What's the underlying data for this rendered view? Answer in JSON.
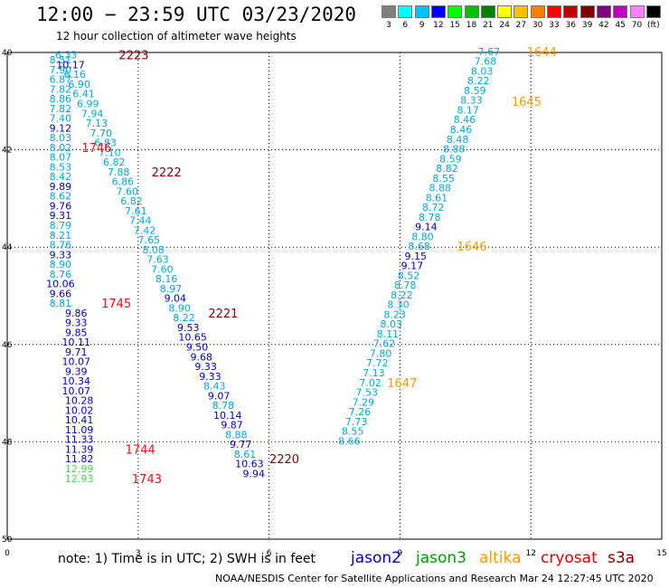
{
  "header": {
    "title": "12:00 − 23:59 UTC 03/23/2020",
    "subtitle": "12 hour collection of altimeter wave heights"
  },
  "colorbar": {
    "colors": [
      "#808080",
      "#00ffff",
      "#00c0ff",
      "#0000ff",
      "#00ff00",
      "#00c000",
      "#008000",
      "#ffff00",
      "#ffc000",
      "#ff8000",
      "#ff0000",
      "#c00000",
      "#800000",
      "#800080",
      "#c000c0",
      "#ff80ff",
      "#000000"
    ],
    "labels": [
      "3",
      "6",
      "9",
      "12",
      "15",
      "18",
      "21",
      "24",
      "27",
      "30",
      "33",
      "36",
      "39",
      "42",
      "45",
      "70",
      "(ft)"
    ]
  },
  "axes": {
    "x_ticks": [
      "0",
      "3",
      "6",
      "9",
      "12",
      "15"
    ],
    "y_ticks": [
      "40",
      "42",
      "44",
      "46",
      "48",
      "50"
    ]
  },
  "footer": {
    "note": "note:  1) Time is in UTC; 2) SWH is in feet",
    "credit": "NOAA/NESDIS Center for Satellite Applications and Research    Mar 24 12:27:45 UTC 2020",
    "satellites": [
      {
        "name": "jason2",
        "color": "#0000cc"
      },
      {
        "name": "jason3",
        "color": "#00a000"
      },
      {
        "name": "altika",
        "color": "#ff9900"
      },
      {
        "name": "cryosat",
        "color": "#dd0000"
      },
      {
        "name": "s3a",
        "color": "#800000"
      }
    ]
  },
  "chart_data": {
    "type": "scatter",
    "x_ticks": [
      0,
      3,
      6,
      9,
      12,
      15
    ],
    "y_ticks": [
      40,
      42,
      44,
      46,
      48,
      50
    ],
    "xlim": [
      0,
      15
    ],
    "ylim": [
      40,
      50
    ],
    "grid": "dotted",
    "colors": {
      "cyan": "#00aadd",
      "blue": "#0000cc",
      "green": "#44dd44",
      "red": "#ee1111",
      "dark": "#880000",
      "orange": "#ff9900"
    },
    "points": [
      {
        "x": 1.22,
        "y": 40.15,
        "v": "8.51",
        "c": "cyan"
      },
      {
        "x": 1.22,
        "y": 40.35,
        "v": "7.90",
        "c": "cyan"
      },
      {
        "x": 1.22,
        "y": 40.55,
        "v": "6.87",
        "c": "cyan"
      },
      {
        "x": 1.22,
        "y": 40.75,
        "v": "7.82",
        "c": "cyan"
      },
      {
        "x": 1.22,
        "y": 40.95,
        "v": "8.86",
        "c": "cyan"
      },
      {
        "x": 1.22,
        "y": 41.15,
        "v": "7.82",
        "c": "cyan"
      },
      {
        "x": 1.22,
        "y": 41.35,
        "v": "7.40",
        "c": "cyan"
      },
      {
        "x": 1.22,
        "y": 41.55,
        "v": "9.12",
        "c": "blue"
      },
      {
        "x": 1.22,
        "y": 41.75,
        "v": "8.03",
        "c": "cyan"
      },
      {
        "x": 1.22,
        "y": 41.95,
        "v": "8.02",
        "c": "cyan"
      },
      {
        "x": 1.22,
        "y": 42.15,
        "v": "8.07",
        "c": "cyan"
      },
      {
        "x": 1.22,
        "y": 42.35,
        "v": "8.53",
        "c": "cyan"
      },
      {
        "x": 1.22,
        "y": 42.55,
        "v": "8.42",
        "c": "cyan"
      },
      {
        "x": 1.22,
        "y": 42.75,
        "v": "9.89",
        "c": "blue"
      },
      {
        "x": 1.22,
        "y": 42.95,
        "v": "8.62",
        "c": "cyan"
      },
      {
        "x": 1.22,
        "y": 43.15,
        "v": "9.76",
        "c": "blue"
      },
      {
        "x": 1.22,
        "y": 43.35,
        "v": "9.31",
        "c": "blue"
      },
      {
        "x": 1.22,
        "y": 43.55,
        "v": "8.79",
        "c": "cyan"
      },
      {
        "x": 1.22,
        "y": 43.75,
        "v": "8.21",
        "c": "cyan"
      },
      {
        "x": 1.22,
        "y": 43.95,
        "v": "8.76",
        "c": "cyan"
      },
      {
        "x": 1.22,
        "y": 44.15,
        "v": "9.33",
        "c": "blue"
      },
      {
        "x": 1.22,
        "y": 44.35,
        "v": "8.90",
        "c": "cyan"
      },
      {
        "x": 1.22,
        "y": 44.55,
        "v": "8.76",
        "c": "cyan"
      },
      {
        "x": 1.22,
        "y": 44.75,
        "v": "10.06",
        "c": "blue"
      },
      {
        "x": 1.22,
        "y": 44.95,
        "v": "9.66",
        "c": "blue"
      },
      {
        "x": 1.22,
        "y": 45.15,
        "v": "8.81",
        "c": "cyan"
      },
      {
        "x": 1.58,
        "y": 45.35,
        "v": "9.86",
        "c": "blue"
      },
      {
        "x": 1.58,
        "y": 45.55,
        "v": "9.33",
        "c": "blue"
      },
      {
        "x": 1.58,
        "y": 45.75,
        "v": "9.85",
        "c": "blue"
      },
      {
        "x": 1.58,
        "y": 45.95,
        "v": "10.11",
        "c": "blue"
      },
      {
        "x": 1.58,
        "y": 46.15,
        "v": "9.71",
        "c": "blue"
      },
      {
        "x": 1.58,
        "y": 46.35,
        "v": "10.07",
        "c": "blue"
      },
      {
        "x": 1.58,
        "y": 46.55,
        "v": "9.39",
        "c": "blue"
      },
      {
        "x": 1.58,
        "y": 46.75,
        "v": "10.34",
        "c": "blue"
      },
      {
        "x": 1.58,
        "y": 46.95,
        "v": "10.07",
        "c": "blue"
      },
      {
        "x": 1.65,
        "y": 47.15,
        "v": "10.28",
        "c": "blue"
      },
      {
        "x": 1.65,
        "y": 47.35,
        "v": "10.02",
        "c": "blue"
      },
      {
        "x": 1.65,
        "y": 47.55,
        "v": "10.41",
        "c": "blue"
      },
      {
        "x": 1.65,
        "y": 47.75,
        "v": "11.09",
        "c": "blue"
      },
      {
        "x": 1.65,
        "y": 47.95,
        "v": "11.33",
        "c": "blue"
      },
      {
        "x": 1.65,
        "y": 48.15,
        "v": "11.39",
        "c": "blue"
      },
      {
        "x": 1.65,
        "y": 48.35,
        "v": "11.82",
        "c": "blue"
      },
      {
        "x": 1.65,
        "y": 48.55,
        "v": "12.99",
        "c": "green"
      },
      {
        "x": 1.65,
        "y": 48.75,
        "v": "12.93",
        "c": "green"
      },
      {
        "x": 1.35,
        "y": 40.05,
        "v": "6.33",
        "c": "cyan"
      },
      {
        "x": 1.45,
        "y": 40.25,
        "v": "10.17",
        "c": "blue"
      },
      {
        "x": 1.55,
        "y": 40.45,
        "v": "6.16",
        "c": "cyan"
      },
      {
        "x": 1.65,
        "y": 40.65,
        "v": "6.90",
        "c": "cyan"
      },
      {
        "x": 1.75,
        "y": 40.85,
        "v": "6.41",
        "c": "cyan"
      },
      {
        "x": 1.85,
        "y": 41.05,
        "v": "6.99",
        "c": "cyan"
      },
      {
        "x": 1.95,
        "y": 41.25,
        "v": "7.94",
        "c": "cyan"
      },
      {
        "x": 2.05,
        "y": 41.45,
        "v": "7.13",
        "c": "cyan"
      },
      {
        "x": 2.15,
        "y": 41.65,
        "v": "7.70",
        "c": "cyan"
      },
      {
        "x": 2.25,
        "y": 41.85,
        "v": "6.83",
        "c": "cyan"
      },
      {
        "x": 2.35,
        "y": 42.05,
        "v": "7.10",
        "c": "cyan"
      },
      {
        "x": 2.45,
        "y": 42.25,
        "v": "6.82",
        "c": "cyan"
      },
      {
        "x": 2.55,
        "y": 42.45,
        "v": "7.88",
        "c": "cyan"
      },
      {
        "x": 2.65,
        "y": 42.65,
        "v": "6.86",
        "c": "cyan"
      },
      {
        "x": 2.75,
        "y": 42.85,
        "v": "7.60",
        "c": "cyan"
      },
      {
        "x": 2.85,
        "y": 43.05,
        "v": "6.82",
        "c": "cyan"
      },
      {
        "x": 2.95,
        "y": 43.25,
        "v": "7.61",
        "c": "cyan"
      },
      {
        "x": 3.05,
        "y": 43.45,
        "v": "7.44",
        "c": "cyan"
      },
      {
        "x": 3.15,
        "y": 43.65,
        "v": "7.42",
        "c": "cyan"
      },
      {
        "x": 3.25,
        "y": 43.85,
        "v": "7.65",
        "c": "cyan"
      },
      {
        "x": 3.35,
        "y": 44.05,
        "v": "8.08",
        "c": "cyan"
      },
      {
        "x": 3.45,
        "y": 44.25,
        "v": "7.63",
        "c": "cyan"
      },
      {
        "x": 3.55,
        "y": 44.45,
        "v": "7.60",
        "c": "cyan"
      },
      {
        "x": 3.65,
        "y": 44.65,
        "v": "8.16",
        "c": "cyan"
      },
      {
        "x": 3.75,
        "y": 44.85,
        "v": "8.97",
        "c": "cyan"
      },
      {
        "x": 3.85,
        "y": 45.05,
        "v": "9.04",
        "c": "blue"
      },
      {
        "x": 3.95,
        "y": 45.25,
        "v": "8.90",
        "c": "cyan"
      },
      {
        "x": 4.05,
        "y": 45.45,
        "v": "8.22",
        "c": "cyan"
      },
      {
        "x": 4.15,
        "y": 45.65,
        "v": "9.53",
        "c": "blue"
      },
      {
        "x": 4.25,
        "y": 45.85,
        "v": "10.65",
        "c": "blue"
      },
      {
        "x": 4.35,
        "y": 46.05,
        "v": "9.50",
        "c": "blue"
      },
      {
        "x": 4.45,
        "y": 46.25,
        "v": "9.68",
        "c": "blue"
      },
      {
        "x": 4.55,
        "y": 46.45,
        "v": "9.33",
        "c": "blue"
      },
      {
        "x": 4.65,
        "y": 46.65,
        "v": "9.33",
        "c": "blue"
      },
      {
        "x": 4.75,
        "y": 46.85,
        "v": "8.43",
        "c": "cyan"
      },
      {
        "x": 4.85,
        "y": 47.05,
        "v": "9.07",
        "c": "blue"
      },
      {
        "x": 4.95,
        "y": 47.25,
        "v": "8.78",
        "c": "cyan"
      },
      {
        "x": 5.05,
        "y": 47.45,
        "v": "10.14",
        "c": "blue"
      },
      {
        "x": 5.15,
        "y": 47.65,
        "v": "9.87",
        "c": "blue"
      },
      {
        "x": 5.25,
        "y": 47.85,
        "v": "8.88",
        "c": "cyan"
      },
      {
        "x": 5.35,
        "y": 48.05,
        "v": "9.77",
        "c": "blue"
      },
      {
        "x": 5.45,
        "y": 48.25,
        "v": "8.61",
        "c": "cyan"
      },
      {
        "x": 5.55,
        "y": 48.45,
        "v": "10.63",
        "c": "blue"
      },
      {
        "x": 5.65,
        "y": 48.65,
        "v": "9.94",
        "c": "blue"
      },
      {
        "x": 11.04,
        "y": 39.98,
        "v": "7.67",
        "c": "cyan"
      },
      {
        "x": 10.96,
        "y": 40.18,
        "v": "7.68",
        "c": "cyan"
      },
      {
        "x": 10.88,
        "y": 40.38,
        "v": "8.03",
        "c": "cyan"
      },
      {
        "x": 10.8,
        "y": 40.58,
        "v": "8.22",
        "c": "cyan"
      },
      {
        "x": 10.72,
        "y": 40.78,
        "v": "8.59",
        "c": "cyan"
      },
      {
        "x": 10.64,
        "y": 40.98,
        "v": "8.33",
        "c": "cyan"
      },
      {
        "x": 10.56,
        "y": 41.18,
        "v": "8.17",
        "c": "cyan"
      },
      {
        "x": 10.48,
        "y": 41.38,
        "v": "8.46",
        "c": "cyan"
      },
      {
        "x": 10.4,
        "y": 41.58,
        "v": "8.46",
        "c": "cyan"
      },
      {
        "x": 10.32,
        "y": 41.78,
        "v": "8.48",
        "c": "cyan"
      },
      {
        "x": 10.24,
        "y": 41.98,
        "v": "8.88",
        "c": "cyan"
      },
      {
        "x": 10.16,
        "y": 42.18,
        "v": "8.59",
        "c": "cyan"
      },
      {
        "x": 10.08,
        "y": 42.38,
        "v": "8.82",
        "c": "cyan"
      },
      {
        "x": 10.0,
        "y": 42.58,
        "v": "8.55",
        "c": "cyan"
      },
      {
        "x": 9.92,
        "y": 42.78,
        "v": "8.88",
        "c": "cyan"
      },
      {
        "x": 9.84,
        "y": 42.98,
        "v": "8.61",
        "c": "cyan"
      },
      {
        "x": 9.76,
        "y": 43.18,
        "v": "8.72",
        "c": "cyan"
      },
      {
        "x": 9.68,
        "y": 43.38,
        "v": "8.78",
        "c": "cyan"
      },
      {
        "x": 9.6,
        "y": 43.58,
        "v": "9.14",
        "c": "blue"
      },
      {
        "x": 9.52,
        "y": 43.78,
        "v": "8.80",
        "c": "cyan"
      },
      {
        "x": 9.44,
        "y": 43.98,
        "v": "8.68",
        "c": "cyan"
      },
      {
        "x": 9.36,
        "y": 44.18,
        "v": "9.15",
        "c": "blue"
      },
      {
        "x": 9.28,
        "y": 44.38,
        "v": "9.17",
        "c": "blue"
      },
      {
        "x": 9.2,
        "y": 44.58,
        "v": "8.52",
        "c": "cyan"
      },
      {
        "x": 9.12,
        "y": 44.78,
        "v": "8.78",
        "c": "cyan"
      },
      {
        "x": 9.04,
        "y": 44.98,
        "v": "8.22",
        "c": "cyan"
      },
      {
        "x": 8.96,
        "y": 45.18,
        "v": "8.30",
        "c": "cyan"
      },
      {
        "x": 8.88,
        "y": 45.38,
        "v": "8.23",
        "c": "cyan"
      },
      {
        "x": 8.8,
        "y": 45.58,
        "v": "8.03",
        "c": "cyan"
      },
      {
        "x": 8.72,
        "y": 45.78,
        "v": "8.11",
        "c": "cyan"
      },
      {
        "x": 8.64,
        "y": 45.98,
        "v": "7.62",
        "c": "cyan"
      },
      {
        "x": 8.56,
        "y": 46.18,
        "v": "7.80",
        "c": "cyan"
      },
      {
        "x": 8.48,
        "y": 46.38,
        "v": "7.72",
        "c": "cyan"
      },
      {
        "x": 8.4,
        "y": 46.58,
        "v": "7.13",
        "c": "cyan"
      },
      {
        "x": 8.32,
        "y": 46.78,
        "v": "7.02",
        "c": "cyan"
      },
      {
        "x": 8.24,
        "y": 46.98,
        "v": "7.53",
        "c": "cyan"
      },
      {
        "x": 8.16,
        "y": 47.18,
        "v": "7.29",
        "c": "cyan"
      },
      {
        "x": 8.08,
        "y": 47.38,
        "v": "7.26",
        "c": "cyan"
      },
      {
        "x": 8.0,
        "y": 47.58,
        "v": "7.73",
        "c": "cyan"
      },
      {
        "x": 7.92,
        "y": 47.78,
        "v": "8.55",
        "c": "cyan"
      },
      {
        "x": 7.84,
        "y": 47.98,
        "v": "8.66",
        "c": "cyan"
      }
    ],
    "track_labels": [
      {
        "x": 2.9,
        "y": 40.05,
        "v": "2223",
        "c": "dark"
      },
      {
        "x": 2.05,
        "y": 41.95,
        "v": "1746",
        "c": "red"
      },
      {
        "x": 3.65,
        "y": 42.45,
        "v": "2222",
        "c": "dark"
      },
      {
        "x": 2.5,
        "y": 45.15,
        "v": "1745",
        "c": "red"
      },
      {
        "x": 4.95,
        "y": 45.35,
        "v": "2221",
        "c": "dark"
      },
      {
        "x": 3.05,
        "y": 48.15,
        "v": "1744",
        "c": "red"
      },
      {
        "x": 3.2,
        "y": 48.75,
        "v": "1743",
        "c": "red"
      },
      {
        "x": 6.35,
        "y": 48.35,
        "v": "2220",
        "c": "dark"
      },
      {
        "x": 12.25,
        "y": 39.98,
        "v": "1644",
        "c": "orange"
      },
      {
        "x": 11.9,
        "y": 41.0,
        "v": "1645",
        "c": "orange"
      },
      {
        "x": 10.65,
        "y": 43.98,
        "v": "1646",
        "c": "orange"
      },
      {
        "x": 9.05,
        "y": 46.78,
        "v": "1647",
        "c": "orange"
      }
    ]
  }
}
